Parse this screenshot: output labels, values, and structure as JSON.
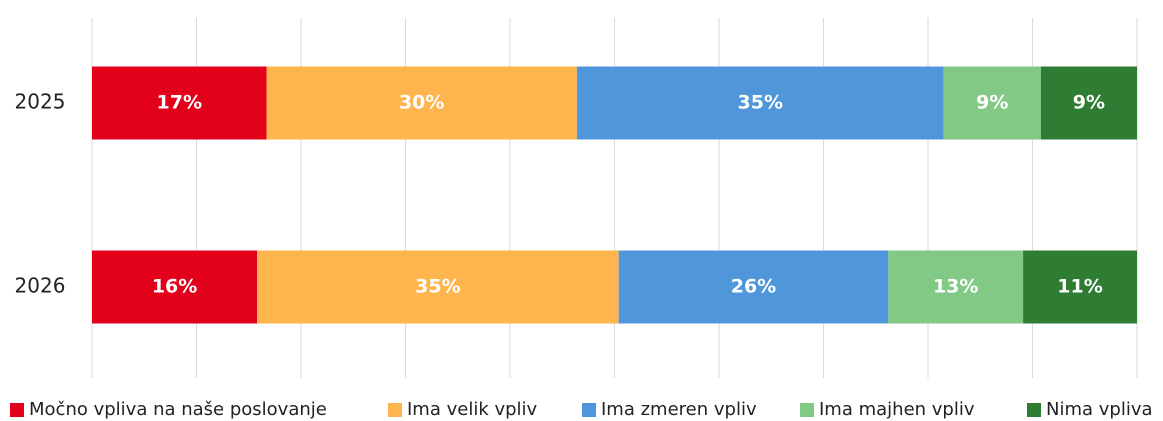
{
  "chart_data": {
    "type": "stacked-barh",
    "categories": [
      "2025",
      "2026"
    ],
    "series": [
      {
        "name": "Močno vpliva na naše poslovanje",
        "color": "#e2001a",
        "values": [
          16.7,
          15.8
        ],
        "value_labels": [
          "17%",
          "16%"
        ]
      },
      {
        "name": "Ima velik vpliv",
        "color": "#ffb54d",
        "values": [
          29.7,
          34.6
        ],
        "value_labels": [
          "30%",
          "35%"
        ]
      },
      {
        "name": "Ima zmeren vpliv",
        "color": "#5096db",
        "values": [
          35.1,
          25.8
        ],
        "value_labels": [
          "35%",
          "26%"
        ]
      },
      {
        "name": "Ima majhen vpliv",
        "color": "#82c985",
        "values": [
          9.3,
          12.9
        ],
        "value_labels": [
          "9%",
          "13%"
        ]
      },
      {
        "name": "Nima vpliva",
        "color": "#2e7d32",
        "values": [
          9.2,
          10.9
        ],
        "value_labels": [
          "9%",
          "11%"
        ]
      }
    ],
    "xlim": [
      0,
      100
    ],
    "xticks": [
      0,
      10,
      20,
      30,
      40,
      50,
      60,
      70,
      80,
      90,
      100
    ],
    "grid": true,
    "legend": "bottom"
  }
}
